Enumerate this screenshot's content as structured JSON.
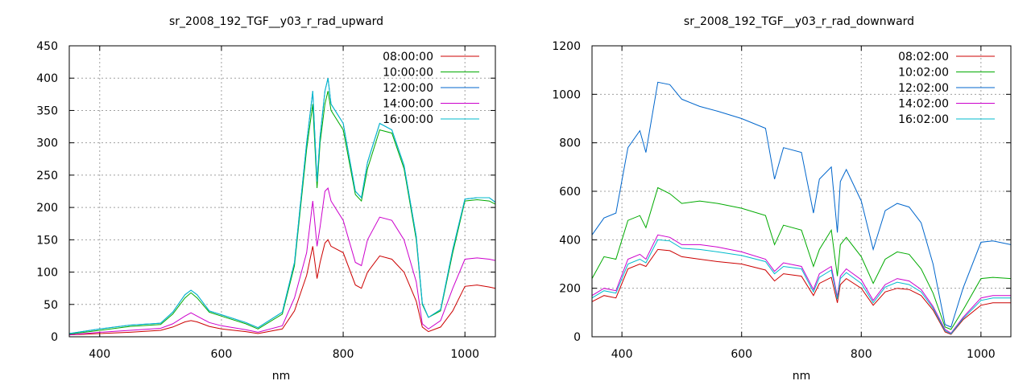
{
  "chart_data": [
    {
      "type": "line",
      "title": "sr_2008_192_TGF__y03_r_rad_upward",
      "xlabel": "nm",
      "ylabel": "",
      "xlim": [
        350,
        1050
      ],
      "ylim": [
        0,
        450
      ],
      "xticks": [
        400,
        600,
        800,
        1000
      ],
      "yticks": [
        0,
        50,
        100,
        150,
        200,
        250,
        300,
        350,
        400,
        450
      ],
      "grid": true,
      "legend_position": "top-right",
      "x": [
        350,
        400,
        450,
        500,
        520,
        540,
        550,
        560,
        580,
        600,
        640,
        660,
        700,
        720,
        740,
        750,
        757,
        762,
        770,
        775,
        780,
        800,
        820,
        830,
        840,
        860,
        880,
        900,
        920,
        930,
        940,
        960,
        980,
        1000,
        1020,
        1040,
        1050
      ],
      "series": [
        {
          "name": "08:00:00",
          "color": "#cc0000",
          "values": [
            3,
            5,
            7,
            10,
            15,
            23,
            25,
            23,
            16,
            12,
            8,
            5,
            12,
            40,
            95,
            140,
            90,
            115,
            145,
            150,
            140,
            130,
            80,
            75,
            100,
            125,
            120,
            100,
            55,
            15,
            8,
            15,
            40,
            78,
            80,
            77,
            75
          ]
        },
        {
          "name": "10:00:00",
          "color": "#00aa00",
          "values": [
            4,
            10,
            16,
            19,
            35,
            60,
            68,
            60,
            38,
            32,
            20,
            12,
            35,
            110,
            290,
            360,
            230,
            300,
            360,
            380,
            350,
            320,
            220,
            210,
            260,
            320,
            315,
            260,
            150,
            50,
            30,
            40,
            130,
            210,
            212,
            210,
            205
          ]
        },
        {
          "name": "12:00:00",
          "color": "#0066cc",
          "values": [
            5,
            12,
            18,
            21,
            38,
            65,
            72,
            65,
            40,
            34,
            22,
            14,
            38,
            115,
            300,
            380,
            240,
            310,
            380,
            400,
            360,
            330,
            225,
            215,
            270,
            330,
            320,
            265,
            155,
            52,
            30,
            42,
            135,
            213,
            215,
            215,
            208
          ]
        },
        {
          "name": "14:00:00",
          "color": "#cc00cc",
          "values": [
            3,
            7,
            10,
            13,
            20,
            32,
            37,
            32,
            22,
            17,
            11,
            7,
            17,
            60,
            130,
            210,
            140,
            170,
            225,
            230,
            210,
            180,
            115,
            110,
            150,
            185,
            180,
            150,
            85,
            20,
            12,
            25,
            75,
            120,
            122,
            120,
            118
          ]
        },
        {
          "name": "16:00:00",
          "color": "#00bbcc",
          "values": [
            5,
            12,
            18,
            21,
            38,
            65,
            72,
            65,
            40,
            34,
            22,
            14,
            38,
            115,
            300,
            380,
            240,
            310,
            380,
            400,
            360,
            330,
            225,
            215,
            270,
            330,
            320,
            265,
            155,
            52,
            30,
            42,
            135,
            213,
            215,
            215,
            208
          ]
        }
      ]
    },
    {
      "type": "line",
      "title": "sr_2008_192_TGF__y03_r_rad_downward",
      "xlabel": "nm",
      "ylabel": "",
      "xlim": [
        350,
        1050
      ],
      "ylim": [
        0,
        1200
      ],
      "xticks": [
        400,
        600,
        800,
        1000
      ],
      "yticks": [
        0,
        200,
        400,
        600,
        800,
        1000,
        1200
      ],
      "grid": true,
      "legend_position": "top-right",
      "x": [
        350,
        370,
        390,
        410,
        430,
        440,
        460,
        480,
        500,
        530,
        560,
        600,
        640,
        655,
        670,
        700,
        720,
        730,
        750,
        760,
        765,
        775,
        800,
        820,
        840,
        860,
        880,
        900,
        920,
        940,
        950,
        970,
        1000,
        1020,
        1050
      ],
      "series": [
        {
          "name": "08:02:00",
          "color": "#cc0000",
          "values": [
            145,
            170,
            160,
            280,
            300,
            290,
            360,
            355,
            330,
            320,
            310,
            300,
            275,
            230,
            260,
            250,
            170,
            220,
            245,
            140,
            215,
            240,
            200,
            130,
            185,
            200,
            195,
            170,
            110,
            20,
            10,
            70,
            130,
            140,
            140
          ]
        },
        {
          "name": "10:02:00",
          "color": "#00aa00",
          "values": [
            240,
            330,
            320,
            480,
            500,
            450,
            615,
            590,
            550,
            560,
            550,
            530,
            500,
            380,
            460,
            440,
            290,
            360,
            440,
            250,
            380,
            410,
            330,
            220,
            320,
            350,
            340,
            280,
            180,
            40,
            30,
            110,
            240,
            245,
            240
          ]
        },
        {
          "name": "12:02:00",
          "color": "#0066cc",
          "values": [
            420,
            490,
            510,
            780,
            850,
            760,
            1050,
            1040,
            980,
            950,
            930,
            900,
            860,
            650,
            780,
            760,
            510,
            650,
            700,
            430,
            640,
            690,
            560,
            360,
            520,
            550,
            535,
            470,
            300,
            50,
            40,
            200,
            390,
            395,
            380
          ]
        },
        {
          "name": "14:02:00",
          "color": "#cc00cc",
          "values": [
            170,
            200,
            190,
            320,
            340,
            320,
            420,
            410,
            380,
            380,
            370,
            350,
            320,
            270,
            305,
            290,
            195,
            260,
            290,
            165,
            250,
            280,
            235,
            150,
            215,
            240,
            230,
            195,
            125,
            30,
            15,
            80,
            160,
            170,
            170
          ]
        },
        {
          "name": "16:02:00",
          "color": "#00bbcc",
          "values": [
            160,
            190,
            180,
            300,
            320,
            305,
            400,
            395,
            365,
            360,
            350,
            335,
            310,
            260,
            290,
            280,
            185,
            245,
            275,
            155,
            240,
            265,
            220,
            140,
            205,
            225,
            215,
            185,
            118,
            25,
            12,
            75,
            150,
            160,
            160
          ]
        }
      ]
    }
  ]
}
